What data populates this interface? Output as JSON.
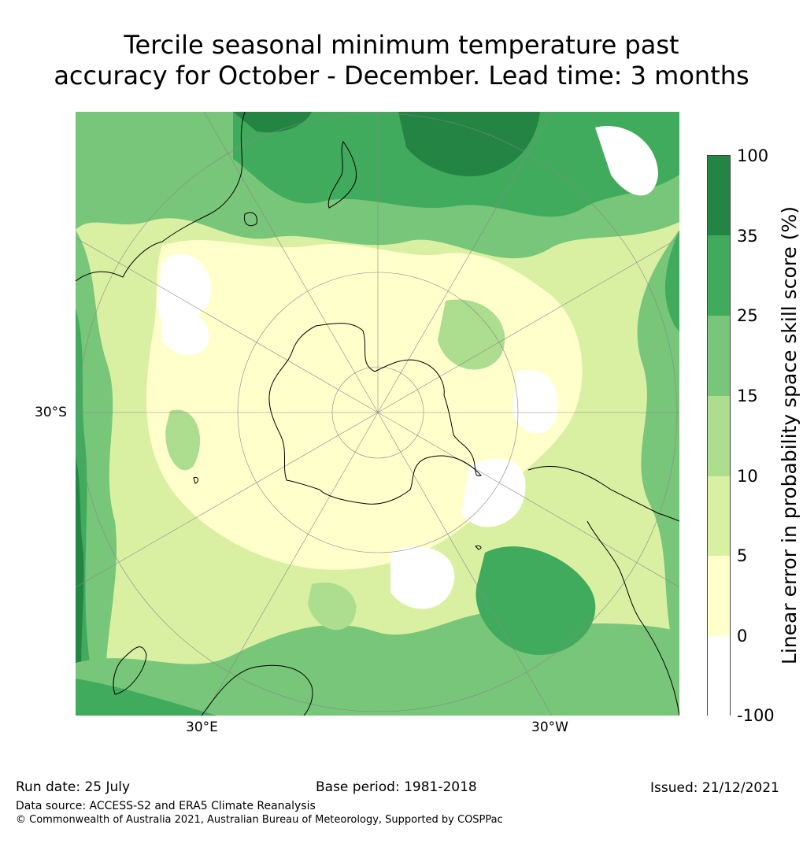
{
  "title": {
    "line1": "Tercile seasonal minimum temperature past",
    "line2": "accuracy for October - December. Lead time: 3 months"
  },
  "map": {
    "projection": "south polar stereographic",
    "lat_label": "30°S",
    "lon_labels": [
      "30°E",
      "30°W"
    ],
    "land_fill": "none",
    "coastline_color": "#000000",
    "graticule_color": "#888888"
  },
  "colorbar": {
    "label": "Linear error in probability space skill score (%)",
    "ticks": [
      "100",
      "35",
      "25",
      "15",
      "10",
      "5",
      "0",
      "-100"
    ],
    "bins": [
      {
        "from": -100,
        "to": 0,
        "color": "#ffffff"
      },
      {
        "from": 0,
        "to": 5,
        "color": "#ffffcc"
      },
      {
        "from": 5,
        "to": 10,
        "color": "#d9f0a3"
      },
      {
        "from": 10,
        "to": 15,
        "color": "#addd8e"
      },
      {
        "from": 15,
        "to": 25,
        "color": "#78c679"
      },
      {
        "from": 25,
        "to": 35,
        "color": "#41ab5d"
      },
      {
        "from": 35,
        "to": 100,
        "color": "#238443"
      }
    ]
  },
  "footer": {
    "run_date": "Run date: 25 July",
    "base_period": "Base period: 1981-2018",
    "issued": "Issued: 21/12/2021",
    "data_source": "Data source: ACCESS-S2 and ERA5 Climate Reanalysis",
    "copyright": "© Commonwealth of Australia 2021, Australian Bureau of Meteorology, Supported by COSPPac"
  }
}
